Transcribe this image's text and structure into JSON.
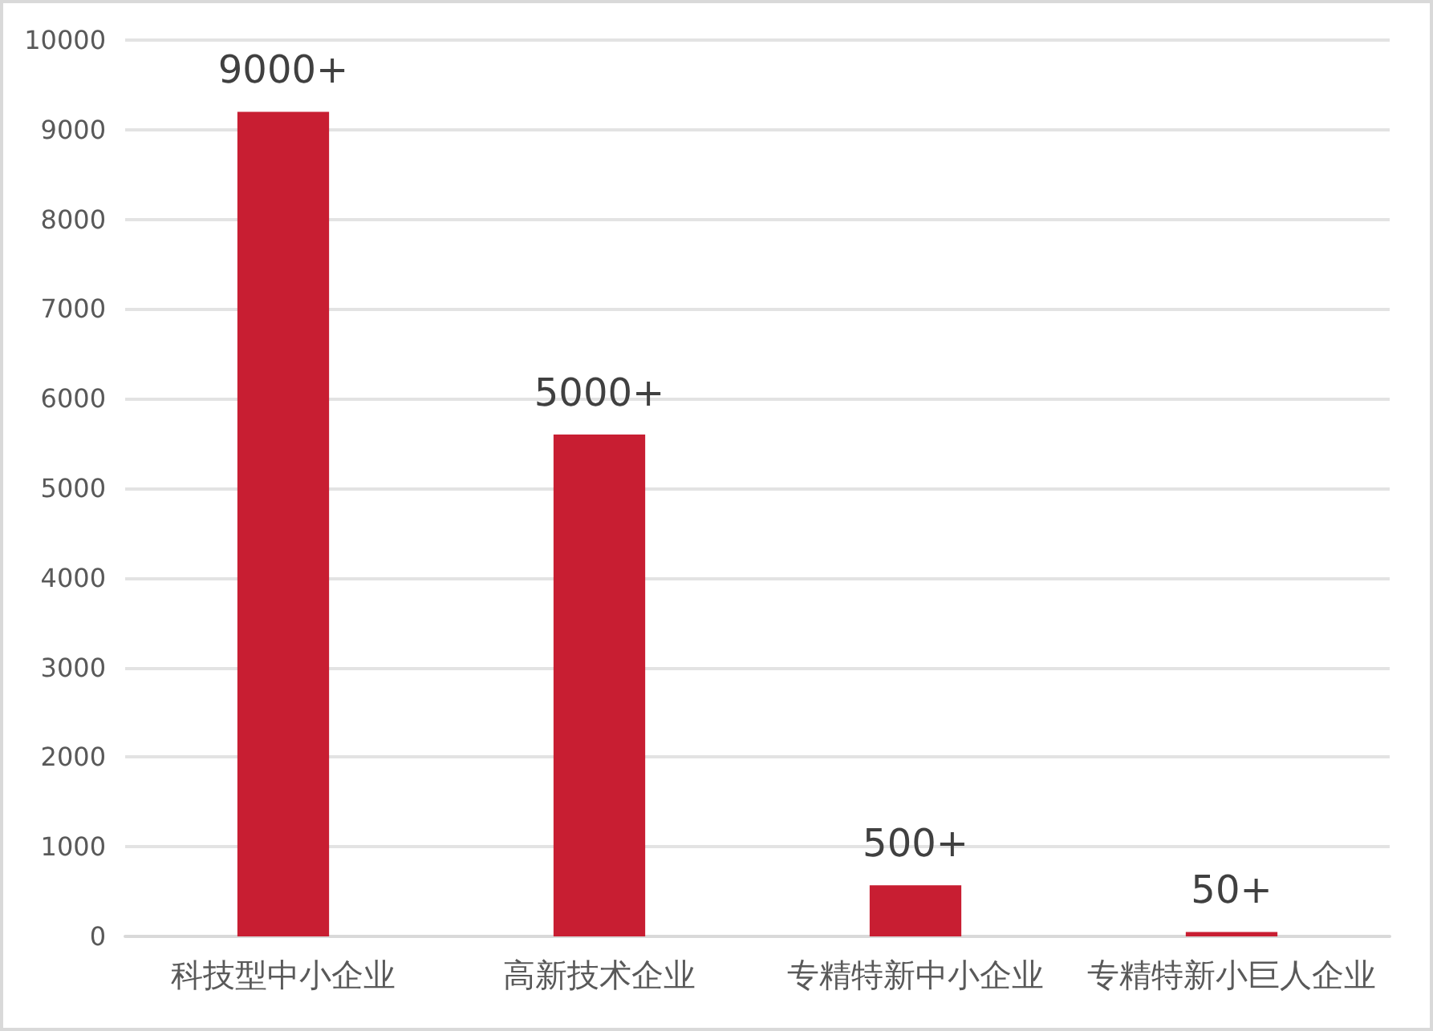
{
  "chart_data": {
    "type": "bar",
    "categories": [
      "科技型中小企业",
      "高新技术企业",
      "专精特新中小企业",
      "专精特新小巨人企业"
    ],
    "values": [
      9200,
      5600,
      570,
      50
    ],
    "value_labels": [
      "9000+",
      "5000+",
      "500+",
      "50+"
    ],
    "color": "#c81e32",
    "ylim": [
      0,
      10000
    ],
    "yticks": [
      0,
      1000,
      2000,
      3000,
      4000,
      5000,
      6000,
      7000,
      8000,
      9000,
      10000
    ],
    "grid": "y"
  }
}
